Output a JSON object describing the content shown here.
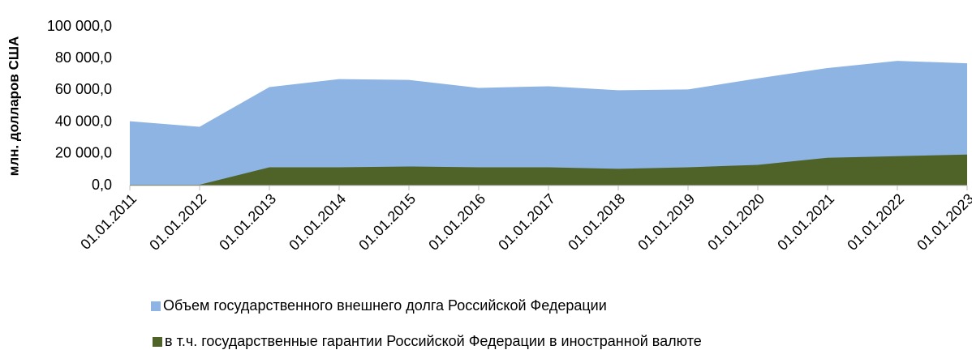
{
  "chart_data": {
    "type": "area",
    "ylabel": "млн. долларов США",
    "categories": [
      "01.01.2011",
      "01.01.2012",
      "01.01.2013",
      "01.01.2014",
      "01.01.2015",
      "01.01.2016",
      "01.01.2017",
      "01.01.2018",
      "01.01.2019",
      "01.01.2020",
      "01.01.2021",
      "01.01.2022",
      "01.01.2023"
    ],
    "series": [
      {
        "name": "Объем государственного внешнего долга Российской Федерации",
        "color": "#8eb4e3",
        "values": [
          40500,
          37000,
          62000,
          67000,
          66500,
          61500,
          62500,
          60000,
          60500,
          67500,
          74000,
          78500,
          77000
        ]
      },
      {
        "name": "в т.ч. государственные гарантии Российской Федерации в иностранной валюте",
        "color": "#4f6228",
        "values": [
          500,
          500,
          11500,
          11500,
          12000,
          11500,
          11500,
          10500,
          11500,
          13000,
          17500,
          18500,
          19500
        ]
      }
    ],
    "ylim": [
      0,
      100000
    ],
    "yticks": [
      {
        "value": 0,
        "label": "0,0"
      },
      {
        "value": 20000,
        "label": "20 000,0"
      },
      {
        "value": 40000,
        "label": "40 000,0"
      },
      {
        "value": 60000,
        "label": "60 000,0"
      },
      {
        "value": 80000,
        "label": "80 000,0"
      },
      {
        "value": 100000,
        "label": "100 000,0"
      }
    ],
    "grid": false,
    "legend": "bottom"
  }
}
